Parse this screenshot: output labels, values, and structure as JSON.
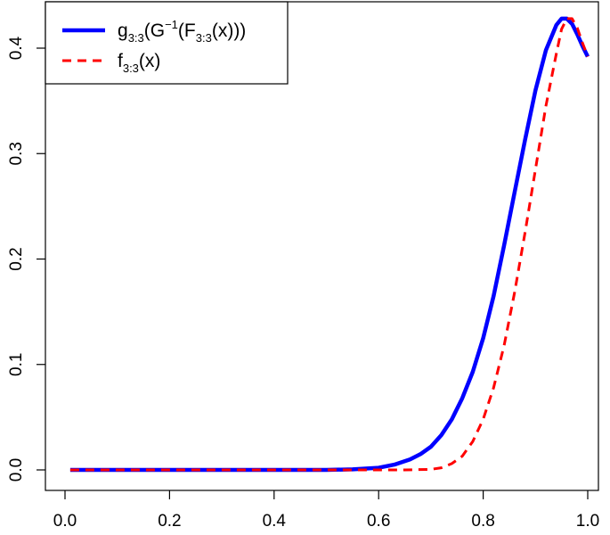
{
  "chart_data": {
    "type": "line",
    "title": "",
    "xlabel": "",
    "ylabel": "",
    "xlim": [
      0.0,
      1.0
    ],
    "ylim": [
      0.0,
      0.43
    ],
    "x_ticks": [
      "0.0",
      "0.2",
      "0.4",
      "0.6",
      "0.8",
      "1.0"
    ],
    "y_ticks": [
      "0.0",
      "0.1",
      "0.2",
      "0.3",
      "0.4"
    ],
    "grid": false,
    "legend_position": "top-left",
    "series": [
      {
        "name": "g3:3(G−1(F3:3(x)))",
        "name_parts": {
          "g": "g",
          "g_sub": "3:3",
          "open": "(G",
          "sup": "−1",
          "mid": "(F",
          "f_sub": "3:3",
          "close": "(x)))"
        },
        "color": "#0000ff",
        "style": "solid",
        "x": [
          0.01,
          0.1,
          0.2,
          0.3,
          0.4,
          0.5,
          0.55,
          0.6,
          0.63,
          0.66,
          0.68,
          0.7,
          0.72,
          0.74,
          0.76,
          0.78,
          0.8,
          0.82,
          0.84,
          0.86,
          0.88,
          0.9,
          0.92,
          0.94,
          0.95,
          0.96,
          0.97,
          0.98,
          0.99,
          1.0
        ],
        "y": [
          0.0,
          0.0,
          0.0,
          0.0,
          0.0,
          0.0,
          0.0005,
          0.002,
          0.005,
          0.01,
          0.015,
          0.022,
          0.033,
          0.048,
          0.068,
          0.093,
          0.125,
          0.165,
          0.213,
          0.263,
          0.313,
          0.36,
          0.398,
          0.422,
          0.428,
          0.428,
          0.423,
          0.413,
          0.402,
          0.392
        ]
      },
      {
        "name": "f3:3(x)",
        "name_parts": {
          "f": "f",
          "f_sub": "3:3",
          "close": "(x)"
        },
        "color": "#ff0000",
        "style": "dashed",
        "x": [
          0.01,
          0.1,
          0.2,
          0.3,
          0.4,
          0.5,
          0.6,
          0.65,
          0.7,
          0.72,
          0.74,
          0.76,
          0.78,
          0.8,
          0.82,
          0.84,
          0.86,
          0.88,
          0.9,
          0.92,
          0.94,
          0.95,
          0.96,
          0.97,
          0.98,
          0.99,
          1.0
        ],
        "y": [
          0.0,
          0.0,
          0.0,
          0.0,
          0.0,
          0.0,
          0.0,
          0.0,
          0.0005,
          0.002,
          0.006,
          0.013,
          0.027,
          0.048,
          0.078,
          0.118,
          0.168,
          0.225,
          0.285,
          0.345,
          0.395,
          0.418,
          0.428,
          0.428,
          0.419,
          0.405,
          0.392
        ]
      }
    ]
  }
}
